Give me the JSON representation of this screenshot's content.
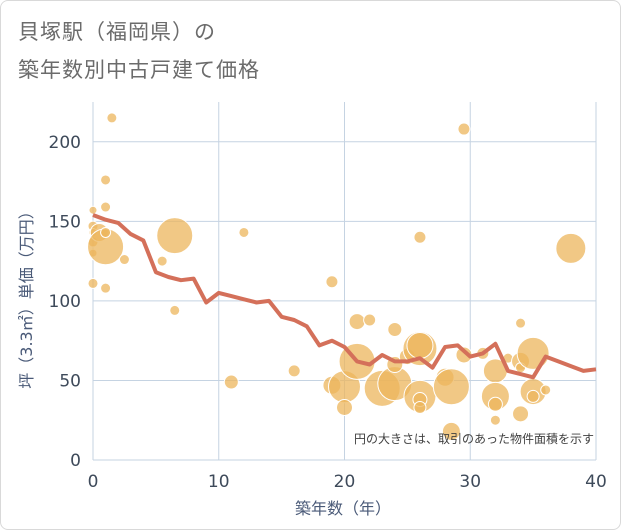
{
  "title_line1": "貝塚駅（福岡県）の",
  "title_line2": "築年数別中古戸建て価格",
  "note": "円の大きさは、取引のあった物件面積を示す",
  "colors": {
    "bubble": "#ecb55c",
    "line": "#d4705a",
    "grid": "#c5d3e2",
    "plot_bg": "#ffffff",
    "tick": "#3e4a5a"
  },
  "chart_data": {
    "type": "scatter",
    "xlabel": "築年数（年）",
    "ylabel": "坪（3.3㎡）単価（万円）",
    "xlim": [
      0,
      40
    ],
    "ylim": [
      0,
      225
    ],
    "xticks": [
      0,
      10,
      20,
      30,
      40
    ],
    "yticks": [
      0,
      50,
      100,
      150,
      200
    ],
    "grid": true,
    "bubbles": [
      {
        "x": 0,
        "y": 157,
        "s": 4
      },
      {
        "x": 0,
        "y": 147,
        "s": 5
      },
      {
        "x": 0,
        "y": 143,
        "s": 4
      },
      {
        "x": 0,
        "y": 137,
        "s": 5
      },
      {
        "x": 0,
        "y": 130,
        "s": 4
      },
      {
        "x": 0,
        "y": 111,
        "s": 5
      },
      {
        "x": 0.5,
        "y": 143,
        "s": 9
      },
      {
        "x": 1,
        "y": 134,
        "s": 18
      },
      {
        "x": 1,
        "y": 176,
        "s": 5
      },
      {
        "x": 1,
        "y": 159,
        "s": 5
      },
      {
        "x": 1,
        "y": 143,
        "s": 5
      },
      {
        "x": 1,
        "y": 108,
        "s": 5
      },
      {
        "x": 1.5,
        "y": 215,
        "s": 5
      },
      {
        "x": 2.5,
        "y": 126,
        "s": 5
      },
      {
        "x": 5.5,
        "y": 125,
        "s": 5
      },
      {
        "x": 6.5,
        "y": 141,
        "s": 18
      },
      {
        "x": 6.5,
        "y": 94,
        "s": 5
      },
      {
        "x": 11,
        "y": 49,
        "s": 7
      },
      {
        "x": 12,
        "y": 143,
        "s": 5
      },
      {
        "x": 16,
        "y": 56,
        "s": 6
      },
      {
        "x": 19,
        "y": 112,
        "s": 6
      },
      {
        "x": 19,
        "y": 47,
        "s": 9
      },
      {
        "x": 20,
        "y": 46,
        "s": 16
      },
      {
        "x": 20,
        "y": 33,
        "s": 8
      },
      {
        "x": 21,
        "y": 87,
        "s": 8
      },
      {
        "x": 21,
        "y": 62,
        "s": 18
      },
      {
        "x": 22,
        "y": 88,
        "s": 6
      },
      {
        "x": 23,
        "y": 45,
        "s": 18
      },
      {
        "x": 24,
        "y": 82,
        "s": 7
      },
      {
        "x": 24,
        "y": 48,
        "s": 17
      },
      {
        "x": 24,
        "y": 60,
        "s": 8
      },
      {
        "x": 25,
        "y": 65,
        "s": 8
      },
      {
        "x": 26,
        "y": 70,
        "s": 17
      },
      {
        "x": 26,
        "y": 72,
        "s": 13
      },
      {
        "x": 26,
        "y": 140,
        "s": 6
      },
      {
        "x": 26,
        "y": 40,
        "s": 16
      },
      {
        "x": 26,
        "y": 38,
        "s": 7
      },
      {
        "x": 26,
        "y": 33,
        "s": 6
      },
      {
        "x": 28,
        "y": 52,
        "s": 9
      },
      {
        "x": 28.5,
        "y": 46,
        "s": 18
      },
      {
        "x": 28.5,
        "y": 18,
        "s": 9
      },
      {
        "x": 29.5,
        "y": 208,
        "s": 6
      },
      {
        "x": 29.5,
        "y": 66,
        "s": 8
      },
      {
        "x": 31,
        "y": 67,
        "s": 6
      },
      {
        "x": 32,
        "y": 56,
        "s": 12
      },
      {
        "x": 32,
        "y": 40,
        "s": 14
      },
      {
        "x": 32,
        "y": 35,
        "s": 7
      },
      {
        "x": 32,
        "y": 25,
        "s": 5
      },
      {
        "x": 33,
        "y": 64,
        "s": 5
      },
      {
        "x": 34,
        "y": 86,
        "s": 5
      },
      {
        "x": 34,
        "y": 62,
        "s": 9
      },
      {
        "x": 34,
        "y": 58,
        "s": 5
      },
      {
        "x": 34,
        "y": 29,
        "s": 8
      },
      {
        "x": 35,
        "y": 67,
        "s": 16
      },
      {
        "x": 35,
        "y": 43,
        "s": 13
      },
      {
        "x": 35,
        "y": 40,
        "s": 6
      },
      {
        "x": 36,
        "y": 44,
        "s": 5
      },
      {
        "x": 38,
        "y": 133,
        "s": 15
      }
    ],
    "trend_line": {
      "x": [
        0,
        1,
        2,
        3,
        4,
        5,
        6,
        7,
        8,
        9,
        10,
        11,
        12,
        13,
        14,
        15,
        16,
        17,
        18,
        19,
        20,
        21,
        22,
        23,
        24,
        25,
        26,
        27,
        28,
        29,
        30,
        31,
        32,
        33,
        34,
        35,
        36,
        37,
        38,
        39,
        40
      ],
      "y": [
        154,
        151,
        149,
        142,
        138,
        118,
        115,
        113,
        114,
        99,
        105,
        103,
        101,
        99,
        100,
        90,
        88,
        84,
        72,
        75,
        71,
        62,
        60,
        66,
        62,
        62,
        64,
        58,
        71,
        72,
        65,
        67,
        73,
        56,
        54,
        52,
        65,
        62,
        59,
        56,
        57
      ]
    }
  }
}
